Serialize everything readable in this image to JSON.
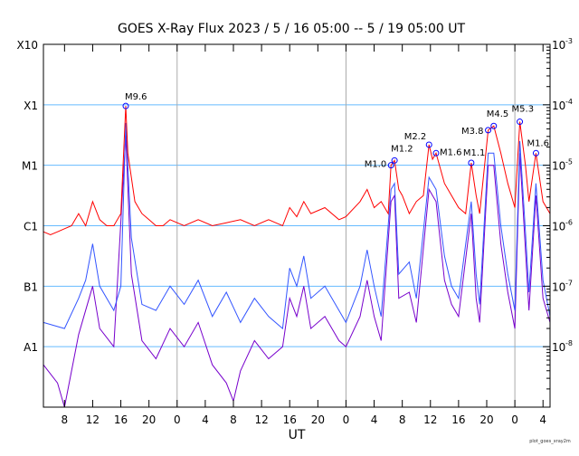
{
  "chart_data": {
    "type": "line",
    "title": "GOES X-Ray Flux   2023  /  5  /  16    05:00 --   5  /  19    05:00    UT",
    "xlabel": "UT",
    "footnote": "plot_goes_xray2m",
    "x_units": "hours since 2023-05-16 05:00",
    "xlim": [
      0,
      72
    ],
    "ylim_log10": [
      -9,
      -3
    ],
    "x_tick_hours": [
      3,
      7,
      11,
      15,
      19,
      23,
      27,
      31,
      35,
      39,
      43,
      47,
      51,
      55,
      59,
      63,
      67,
      71
    ],
    "x_tick_labels": [
      "8",
      "12",
      "16",
      "20",
      "0",
      "4",
      "8",
      "12",
      "16",
      "20",
      "0",
      "4",
      "8",
      "12",
      "16",
      "20",
      "0",
      "4"
    ],
    "day_boundaries": [
      19,
      43,
      67
    ],
    "left_labels": [
      {
        "label": "X10",
        "log10": -3
      },
      {
        "label": "X1",
        "log10": -4
      },
      {
        "label": "M1",
        "log10": -5
      },
      {
        "label": "C1",
        "log10": -6
      },
      {
        "label": "B1",
        "log10": -7
      },
      {
        "label": "A1",
        "log10": -8
      }
    ],
    "right_labels": [
      {
        "label": "10",
        "exp": "-3",
        "log10": -3
      },
      {
        "label": "10",
        "exp": "-4",
        "log10": -4
      },
      {
        "label": "10",
        "exp": "-5",
        "log10": -5
      },
      {
        "label": "10",
        "exp": "-6",
        "log10": -6
      },
      {
        "label": "10",
        "exp": "-7",
        "log10": -7
      },
      {
        "label": "10",
        "exp": "-8",
        "log10": -8
      }
    ],
    "grid_log10": [
      -4,
      -5,
      -6,
      -7,
      -8
    ],
    "series": [
      {
        "name": "long",
        "color": "#ff0000",
        "points": [
          [
            0,
            -6.1
          ],
          [
            1,
            -6.15
          ],
          [
            2,
            -6.1
          ],
          [
            3,
            -6.05
          ],
          [
            4,
            -6.0
          ],
          [
            5,
            -5.8
          ],
          [
            6,
            -6.0
          ],
          [
            7,
            -5.6
          ],
          [
            8,
            -5.9
          ],
          [
            9,
            -6.0
          ],
          [
            10,
            -6.0
          ],
          [
            11,
            -5.8
          ],
          [
            11.7,
            -4.02
          ],
          [
            12,
            -4.8
          ],
          [
            13,
            -5.6
          ],
          [
            14,
            -5.8
          ],
          [
            15,
            -5.9
          ],
          [
            16,
            -6.0
          ],
          [
            17,
            -6.0
          ],
          [
            18,
            -5.9
          ],
          [
            19,
            -5.95
          ],
          [
            20,
            -6.0
          ],
          [
            22,
            -5.9
          ],
          [
            24,
            -6.0
          ],
          [
            26,
            -5.95
          ],
          [
            28,
            -5.9
          ],
          [
            30,
            -6.0
          ],
          [
            32,
            -5.9
          ],
          [
            33,
            -5.95
          ],
          [
            34,
            -6.0
          ],
          [
            35,
            -5.7
          ],
          [
            36,
            -5.85
          ],
          [
            37,
            -5.6
          ],
          [
            38,
            -5.8
          ],
          [
            40,
            -5.7
          ],
          [
            42,
            -5.9
          ],
          [
            43,
            -5.85
          ],
          [
            45,
            -5.6
          ],
          [
            46,
            -5.4
          ],
          [
            47,
            -5.7
          ],
          [
            48,
            -5.6
          ],
          [
            49,
            -5.8
          ],
          [
            49.4,
            -5.0
          ],
          [
            49.9,
            -4.92
          ],
          [
            50.5,
            -5.4
          ],
          [
            51,
            -5.5
          ],
          [
            52,
            -5.8
          ],
          [
            53,
            -5.6
          ],
          [
            54,
            -5.5
          ],
          [
            54.8,
            -4.66
          ],
          [
            55.3,
            -4.9
          ],
          [
            55.8,
            -4.8
          ],
          [
            57,
            -5.3
          ],
          [
            58,
            -5.5
          ],
          [
            59,
            -5.7
          ],
          [
            60,
            -5.8
          ],
          [
            60.8,
            -4.96
          ],
          [
            61.5,
            -5.5
          ],
          [
            62,
            -5.8
          ],
          [
            63.2,
            -4.42
          ],
          [
            64,
            -4.35
          ],
          [
            65,
            -4.8
          ],
          [
            66,
            -5.3
          ],
          [
            67,
            -5.7
          ],
          [
            67.7,
            -4.28
          ],
          [
            68.5,
            -5.0
          ],
          [
            69,
            -5.6
          ],
          [
            70,
            -4.8
          ],
          [
            71,
            -5.6
          ],
          [
            72,
            -5.8
          ]
        ]
      },
      {
        "name": "short",
        "color": "#3355ff",
        "points": [
          [
            0,
            -7.6
          ],
          [
            3,
            -7.7
          ],
          [
            5,
            -7.2
          ],
          [
            6,
            -6.9
          ],
          [
            7,
            -6.3
          ],
          [
            8,
            -7.0
          ],
          [
            10,
            -7.4
          ],
          [
            11,
            -7.0
          ],
          [
            11.7,
            -4.3
          ],
          [
            12.5,
            -6.2
          ],
          [
            14,
            -7.3
          ],
          [
            16,
            -7.4
          ],
          [
            18,
            -7.0
          ],
          [
            20,
            -7.3
          ],
          [
            22,
            -6.9
          ],
          [
            24,
            -7.5
          ],
          [
            26,
            -7.1
          ],
          [
            28,
            -7.6
          ],
          [
            30,
            -7.2
          ],
          [
            32,
            -7.5
          ],
          [
            34,
            -7.7
          ],
          [
            35,
            -6.7
          ],
          [
            36,
            -7.0
          ],
          [
            37,
            -6.5
          ],
          [
            38,
            -7.2
          ],
          [
            40,
            -7.0
          ],
          [
            42,
            -7.4
          ],
          [
            43,
            -7.6
          ],
          [
            45,
            -7.0
          ],
          [
            46,
            -6.4
          ],
          [
            47,
            -7.0
          ],
          [
            48,
            -7.5
          ],
          [
            49.4,
            -5.4
          ],
          [
            49.9,
            -5.3
          ],
          [
            50.5,
            -6.8
          ],
          [
            52,
            -6.6
          ],
          [
            53,
            -7.2
          ],
          [
            54.8,
            -5.2
          ],
          [
            55.8,
            -5.4
          ],
          [
            57,
            -6.5
          ],
          [
            58,
            -7.0
          ],
          [
            59,
            -7.2
          ],
          [
            60.8,
            -5.6
          ],
          [
            61.5,
            -6.8
          ],
          [
            62,
            -7.3
          ],
          [
            63.2,
            -4.8
          ],
          [
            64,
            -4.8
          ],
          [
            65,
            -6.0
          ],
          [
            66,
            -6.8
          ],
          [
            67,
            -7.4
          ],
          [
            67.7,
            -4.6
          ],
          [
            68.5,
            -6.1
          ],
          [
            69,
            -7.1
          ],
          [
            70,
            -5.3
          ],
          [
            71,
            -6.9
          ],
          [
            72,
            -7.5
          ]
        ]
      },
      {
        "name": "short-alt",
        "color": "#7700cc",
        "points": [
          [
            0,
            -8.3
          ],
          [
            2,
            -8.6
          ],
          [
            3,
            -9.0
          ],
          [
            4,
            -8.4
          ],
          [
            5,
            -7.8
          ],
          [
            7,
            -7.0
          ],
          [
            8,
            -7.7
          ],
          [
            10,
            -8.0
          ],
          [
            11.7,
            -4.5
          ],
          [
            12.5,
            -6.8
          ],
          [
            14,
            -7.9
          ],
          [
            16,
            -8.2
          ],
          [
            18,
            -7.7
          ],
          [
            20,
            -8.0
          ],
          [
            22,
            -7.6
          ],
          [
            24,
            -8.3
          ],
          [
            26,
            -8.6
          ],
          [
            27,
            -8.9
          ],
          [
            28,
            -8.4
          ],
          [
            30,
            -7.9
          ],
          [
            32,
            -8.2
          ],
          [
            34,
            -8.0
          ],
          [
            35,
            -7.2
          ],
          [
            36,
            -7.5
          ],
          [
            37,
            -7.0
          ],
          [
            38,
            -7.7
          ],
          [
            40,
            -7.5
          ],
          [
            42,
            -7.9
          ],
          [
            43,
            -8.0
          ],
          [
            45,
            -7.5
          ],
          [
            46,
            -6.9
          ],
          [
            47,
            -7.5
          ],
          [
            48,
            -7.9
          ],
          [
            49.4,
            -5.6
          ],
          [
            49.9,
            -5.5
          ],
          [
            50.5,
            -7.2
          ],
          [
            52,
            -7.1
          ],
          [
            53,
            -7.6
          ],
          [
            54.8,
            -5.4
          ],
          [
            55.8,
            -5.6
          ],
          [
            57,
            -6.9
          ],
          [
            58,
            -7.3
          ],
          [
            59,
            -7.5
          ],
          [
            60.8,
            -5.8
          ],
          [
            61.5,
            -7.2
          ],
          [
            62,
            -7.6
          ],
          [
            63.2,
            -5.0
          ],
          [
            64,
            -5.0
          ],
          [
            65,
            -6.3
          ],
          [
            66,
            -7.1
          ],
          [
            67,
            -7.7
          ],
          [
            67.7,
            -4.8
          ],
          [
            68.5,
            -6.4
          ],
          [
            69,
            -7.4
          ],
          [
            70,
            -5.5
          ],
          [
            71,
            -7.2
          ],
          [
            72,
            -7.6
          ]
        ]
      }
    ],
    "flares": [
      {
        "label": "M9.6",
        "t": 11.7,
        "log10": -4.02
      },
      {
        "label": "M1.0",
        "t": 49.4,
        "log10": -5.0
      },
      {
        "label": "M1.2",
        "t": 49.9,
        "log10": -4.92
      },
      {
        "label": "M2.2",
        "t": 54.8,
        "log10": -4.66
      },
      {
        "label": "M1.6",
        "t": 55.8,
        "log10": -4.8
      },
      {
        "label": "M1.1",
        "t": 60.8,
        "log10": -4.96
      },
      {
        "label": "M3.8",
        "t": 63.2,
        "log10": -4.42
      },
      {
        "label": "M4.5",
        "t": 64.0,
        "log10": -4.35
      },
      {
        "label": "M5.3",
        "t": 67.7,
        "log10": -4.28
      },
      {
        "label": "M1.6",
        "t": 70.0,
        "log10": -4.8
      }
    ]
  }
}
